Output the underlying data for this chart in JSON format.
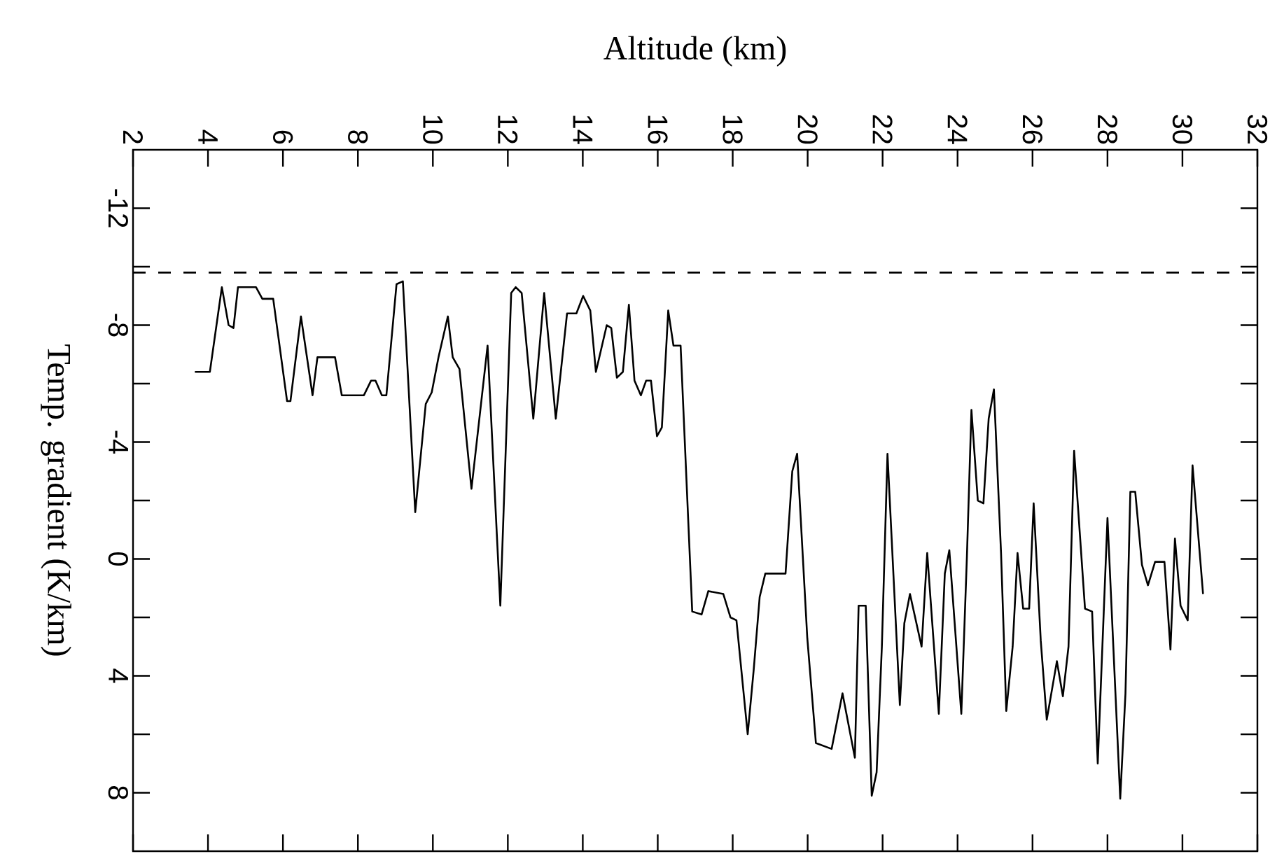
{
  "chart_data": {
    "type": "line",
    "xlabel": "Altitude (km)",
    "ylabel": "Temp. gradient (K/km)",
    "xlim": [
      2,
      32
    ],
    "ylim": [
      10,
      -14
    ],
    "xticks": [
      2,
      4,
      6,
      8,
      10,
      12,
      14,
      16,
      18,
      20,
      22,
      24,
      26,
      28,
      30,
      32
    ],
    "yticks": [
      -12,
      {
        "value": -10,
        "label": null
      },
      -8,
      {
        "value": -6,
        "label": null
      },
      -4,
      {
        "value": -2,
        "label": null
      },
      0,
      {
        "value": 2,
        "label": null
      },
      4,
      {
        "value": 6,
        "label": null
      },
      8
    ],
    "color": "#000000",
    "x": [
      3.65,
      4.05,
      4.37,
      4.55,
      4.68,
      4.8,
      5.28,
      5.45,
      5.74,
      6.11,
      6.2,
      6.48,
      6.79,
      6.92,
      7.39,
      7.57,
      8.16,
      8.35,
      8.47,
      8.64,
      8.76,
      9.03,
      9.2,
      9.53,
      9.81,
      9.97,
      10.15,
      10.4,
      10.53,
      10.71,
      11.03,
      11.46,
      11.8,
      12.09,
      12.21,
      12.37,
      12.68,
      12.97,
      13.28,
      13.58,
      13.83,
      14.01,
      14.2,
      14.35,
      14.64,
      14.76,
      14.91,
      15.07,
      15.23,
      15.38,
      15.55,
      15.69,
      15.82,
      15.98,
      16.11,
      16.28,
      16.42,
      16.61,
      16.92,
      17.17,
      17.35,
      17.75,
      17.94,
      18.1,
      18.4,
      18.56,
      18.72,
      18.87,
      19.41,
      19.59,
      19.72,
      19.99,
      20.22,
      20.64,
      20.93,
      21.26,
      21.36,
      21.55,
      21.71,
      21.84,
      21.98,
      22.13,
      22.46,
      22.58,
      22.73,
      23.04,
      23.19,
      23.5,
      23.66,
      23.78,
      24.1,
      24.25,
      24.37,
      24.54,
      24.69,
      24.83,
      24.97,
      25.16,
      25.3,
      25.47,
      25.6,
      25.75,
      25.91,
      26.03,
      26.22,
      26.38,
      26.65,
      26.81,
      26.96,
      27.11,
      27.4,
      27.59,
      27.74,
      28.0,
      28.34,
      28.48,
      28.61,
      28.74,
      28.92,
      29.08,
      29.27,
      29.52,
      29.68,
      29.8,
      29.95,
      30.14,
      30.27,
      30.55
    ],
    "values": [
      -6.4,
      -6.4,
      -9.3,
      -8.0,
      -7.9,
      -9.3,
      -9.3,
      -8.9,
      -8.9,
      -5.4,
      -5.4,
      -8.3,
      -5.6,
      -6.9,
      -6.9,
      -5.6,
      -5.6,
      -6.1,
      -6.1,
      -5.6,
      -5.6,
      -9.4,
      -9.5,
      -1.6,
      -5.3,
      -5.7,
      -6.9,
      -8.3,
      -6.9,
      -6.5,
      -2.4,
      -7.3,
      1.6,
      -9.1,
      -9.3,
      -9.1,
      -4.8,
      -9.1,
      -4.8,
      -8.4,
      -8.4,
      -9.0,
      -8.5,
      -6.4,
      -8.0,
      -7.9,
      -6.2,
      -6.4,
      -8.7,
      -6.1,
      -5.6,
      -6.1,
      -6.1,
      -4.2,
      -4.5,
      -8.5,
      -7.3,
      -7.3,
      1.8,
      1.9,
      1.1,
      1.2,
      2.0,
      2.1,
      6.0,
      3.8,
      1.3,
      0.5,
      0.5,
      -3.0,
      -3.6,
      2.7,
      6.3,
      6.5,
      4.6,
      6.8,
      1.6,
      1.6,
      8.1,
      7.3,
      3.0,
      -3.6,
      5.0,
      2.2,
      1.2,
      3.0,
      -0.2,
      5.3,
      0.5,
      -0.3,
      5.3,
      -0.1,
      -5.1,
      -2.0,
      -1.9,
      -4.8,
      -5.8,
      -0.2,
      5.2,
      3.0,
      -0.2,
      1.7,
      1.7,
      -1.9,
      2.8,
      5.5,
      3.5,
      4.7,
      3.0,
      -3.7,
      1.7,
      1.8,
      7.0,
      -1.4,
      8.2,
      4.6,
      -2.3,
      -2.3,
      0.2,
      0.9,
      0.1,
      0.1,
      3.1,
      -0.7,
      1.6,
      2.1,
      -3.2,
      1.2
    ],
    "ref_lines": [
      {
        "axis": "y",
        "value": -9.8,
        "line_style": "dashed"
      }
    ]
  }
}
